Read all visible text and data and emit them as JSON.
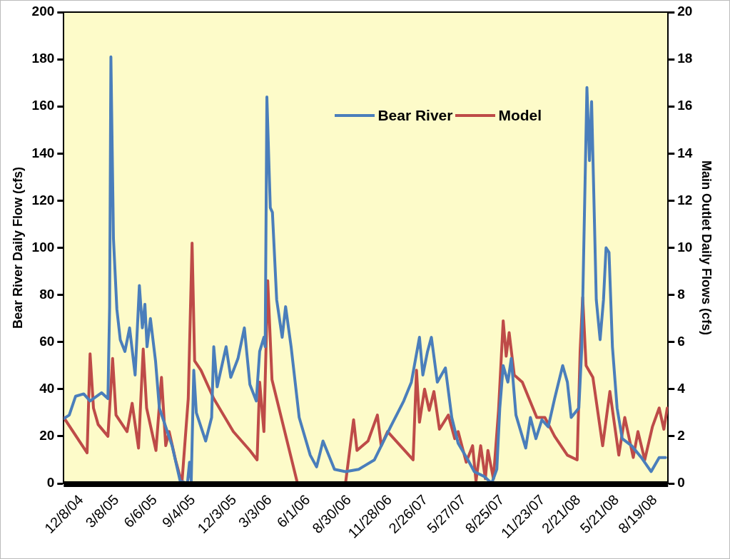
{
  "chart_data": {
    "type": "line",
    "xlabel": null,
    "ylabel": "Bear River Daily Flow (cfs)",
    "y2label": "Main Outlet Daily Flows (cfs)",
    "xlim": [
      "2004-12-08",
      "2008-10-30"
    ],
    "xticks": [
      {
        "value": "2004-12-08",
        "label": "12/8/04"
      },
      {
        "value": "2005-03-08",
        "label": "3/8/05"
      },
      {
        "value": "2005-06-06",
        "label": "6/6/05"
      },
      {
        "value": "2005-09-04",
        "label": "9/4/05"
      },
      {
        "value": "2005-12-03",
        "label": "12/3/05"
      },
      {
        "value": "2006-03-03",
        "label": "3/3/06"
      },
      {
        "value": "2006-06-01",
        "label": "6/1/06"
      },
      {
        "value": "2006-08-30",
        "label": "8/30/06"
      },
      {
        "value": "2006-11-28",
        "label": "11/28/06"
      },
      {
        "value": "2007-02-26",
        "label": "2/26/07"
      },
      {
        "value": "2007-05-27",
        "label": "5/27/07"
      },
      {
        "value": "2007-08-25",
        "label": "8/25/07"
      },
      {
        "value": "2007-11-23",
        "label": "11/23/07"
      },
      {
        "value": "2008-02-21",
        "label": "2/21/08"
      },
      {
        "value": "2008-05-21",
        "label": "5/21/08"
      },
      {
        "value": "2008-08-19",
        "label": "8/19/08"
      }
    ],
    "ylim": [
      0,
      200
    ],
    "yticks": [
      0,
      20,
      40,
      60,
      80,
      100,
      120,
      140,
      160,
      180,
      200
    ],
    "y2lim": [
      0,
      20
    ],
    "y2ticks": [
      0,
      2,
      4,
      6,
      8,
      10,
      12,
      14,
      16,
      18,
      20
    ],
    "legend": "top",
    "marker": "none",
    "grid": false,
    "series": [
      {
        "name": "Bear River",
        "color": "#4a7ebb",
        "x": [
          "2004-12-08",
          "2004-12-21",
          "2005-01-05",
          "2005-01-24",
          "2005-02-08",
          "2005-03-07",
          "2005-03-22",
          "2005-03-26",
          "2005-03-29",
          "2005-04-04",
          "2005-04-12",
          "2005-04-20",
          "2005-05-01",
          "2005-05-12",
          "2005-05-25",
          "2005-06-04",
          "2005-06-11",
          "2005-06-17",
          "2005-06-22",
          "2005-06-30",
          "2005-07-12",
          "2005-07-21",
          "2005-08-20",
          "2005-09-08",
          "2005-09-25",
          "2005-09-30",
          "2005-10-04",
          "2005-10-10",
          "2005-10-16",
          "2005-11-07",
          "2005-11-21",
          "2005-11-26",
          "2005-12-04",
          "2005-12-25",
          "2006-01-05",
          "2006-01-22",
          "2006-02-06",
          "2006-02-19",
          "2006-03-06",
          "2006-03-14",
          "2006-03-24",
          "2006-03-27",
          "2006-03-31",
          "2006-04-08",
          "2006-04-13",
          "2006-04-23",
          "2006-05-06",
          "2006-05-14",
          "2006-05-27",
          "2006-06-15",
          "2006-07-11",
          "2006-07-26",
          "2006-08-10",
          "2006-09-06",
          "2006-10-02",
          "2006-11-02",
          "2006-12-09",
          "2007-01-16",
          "2007-02-16",
          "2007-03-06",
          "2007-03-25",
          "2007-04-02",
          "2007-04-13",
          "2007-04-22",
          "2007-05-06",
          "2007-05-25",
          "2007-06-09",
          "2007-06-24",
          "2007-07-17",
          "2007-08-01",
          "2007-08-24",
          "2007-09-11",
          "2007-09-23",
          "2007-09-30",
          "2007-10-08",
          "2007-10-19",
          "2007-10-27",
          "2007-11-07",
          "2007-11-30",
          "2007-12-11",
          "2007-12-24",
          "2008-01-07",
          "2008-01-22",
          "2008-02-06",
          "2008-02-25",
          "2008-03-07",
          "2008-03-16",
          "2008-04-03",
          "2008-04-10",
          "2008-04-22",
          "2008-04-28",
          "2008-05-03",
          "2008-05-08",
          "2008-05-14",
          "2008-05-23",
          "2008-05-31",
          "2008-06-06",
          "2008-06-13",
          "2008-06-21",
          "2008-07-02",
          "2008-07-14",
          "2008-08-05",
          "2008-08-28",
          "2008-09-20",
          "2008-10-09",
          "2008-10-24"
        ],
        "values": [
          27.5,
          29,
          37,
          38,
          35,
          38.5,
          36,
          75,
          181,
          104,
          74,
          61,
          56,
          66,
          46,
          84,
          66,
          76,
          58,
          70,
          52,
          32,
          16,
          1,
          0,
          9,
          1,
          48,
          30,
          18,
          28,
          58,
          41,
          58,
          45,
          53,
          66,
          42,
          35,
          56,
          62,
          58,
          164,
          117,
          115,
          78,
          62,
          75,
          58,
          28,
          12,
          7,
          18,
          6,
          5,
          6,
          10,
          24,
          35,
          43,
          62,
          46,
          56,
          62,
          43,
          49,
          28,
          17,
          10,
          5,
          3,
          0,
          6,
          32,
          50,
          43,
          53,
          29,
          15,
          28,
          19,
          27,
          24,
          36,
          50,
          43,
          28,
          32,
          58,
          168,
          137,
          162,
          124,
          78,
          61,
          78,
          100,
          98,
          58,
          32,
          19,
          16,
          11,
          5,
          11,
          11
        ]
      },
      {
        "name": "Model",
        "color": "#be4b48",
        "axis": "y2",
        "x": [
          "2004-12-08",
          "2005-02-01",
          "2005-02-08",
          "2005-02-16",
          "2005-02-27",
          "2005-03-22",
          "2005-04-02",
          "2005-04-10",
          "2005-05-06",
          "2005-05-18",
          "2005-06-02",
          "2005-06-13",
          "2005-06-21",
          "2005-07-13",
          "2005-07-26",
          "2005-08-05",
          "2005-08-13",
          "2005-08-28",
          "2005-09-12",
          "2005-09-27",
          "2005-10-06",
          "2005-10-12",
          "2005-10-27",
          "2005-11-26",
          "2006-01-11",
          "2006-02-19",
          "2006-03-08",
          "2006-03-14",
          "2006-03-24",
          "2006-04-02",
          "2006-04-12",
          "2006-06-11",
          "2006-10-02",
          "2006-10-21",
          "2006-10-29",
          "2006-11-24",
          "2006-12-16",
          "2006-12-25",
          "2007-01-09",
          "2007-03-10",
          "2007-03-18",
          "2007-03-25",
          "2007-04-06",
          "2007-04-17",
          "2007-04-28",
          "2007-05-11",
          "2007-06-01",
          "2007-06-16",
          "2007-06-24",
          "2007-07-13",
          "2007-07-28",
          "2007-08-05",
          "2007-08-16",
          "2007-08-27",
          "2007-09-02",
          "2007-09-15",
          "2007-09-27",
          "2007-10-08",
          "2007-10-15",
          "2007-10-22",
          "2007-11-03",
          "2007-11-22",
          "2007-12-26",
          "2008-01-14",
          "2008-02-06",
          "2008-03-07",
          "2008-03-30",
          "2008-04-06",
          "2008-04-12",
          "2008-04-20",
          "2008-05-06",
          "2008-05-29",
          "2008-06-15",
          "2008-07-06",
          "2008-07-20",
          "2008-08-09",
          "2008-08-20",
          "2008-09-05",
          "2008-09-23",
          "2008-10-09",
          "2008-10-20",
          "2008-10-28"
        ],
        "values": [
          2.8,
          1.3,
          5.5,
          3.2,
          2.5,
          2.0,
          5.3,
          2.9,
          2.2,
          3.4,
          1.5,
          5.7,
          3.2,
          1.4,
          4.5,
          1.6,
          2.2,
          1.0,
          0,
          3.6,
          10.2,
          5.2,
          4.8,
          3.6,
          2.2,
          1.4,
          1.0,
          4.3,
          2.2,
          8.6,
          4.4,
          0,
          0,
          2.7,
          1.4,
          1.8,
          2.9,
          1.6,
          2.2,
          1.0,
          4.8,
          2.6,
          4.0,
          3.1,
          3.9,
          2.3,
          2.9,
          1.9,
          2.2,
          0.9,
          1.6,
          0.1,
          1.6,
          0.2,
          1.4,
          0.2,
          3.1,
          6.9,
          5.4,
          6.4,
          4.6,
          4.3,
          2.8,
          2.8,
          2.0,
          1.2,
          1.0,
          5.6,
          7.9,
          5.0,
          4.5,
          1.6,
          3.9,
          1.2,
          2.8,
          1.1,
          2.2,
          1.0,
          2.4,
          3.2,
          2.3,
          3.2
        ]
      }
    ]
  }
}
